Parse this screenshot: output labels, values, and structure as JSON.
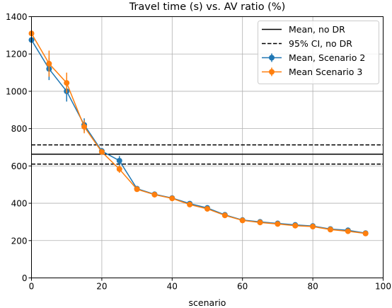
{
  "chart_data": {
    "type": "line",
    "title": "Travel time (s) vs. AV ratio (%)",
    "xlabel": "scenario",
    "ylabel": "",
    "xlim": [
      0,
      100
    ],
    "ylim": [
      0,
      1400
    ],
    "xticks": [
      0,
      20,
      40,
      60,
      80,
      100
    ],
    "yticks": [
      0,
      200,
      400,
      600,
      800,
      1000,
      1200,
      1400
    ],
    "grid": true,
    "legend_position": "top-right",
    "reference_lines": [
      {
        "name": "Mean, no DR",
        "y": 663,
        "style": "solid",
        "color": "#000000"
      },
      {
        "name": "95% CI, no DR",
        "y": 713,
        "style": "dashed",
        "color": "#000000"
      },
      {
        "name": "95% CI, no DR",
        "y": 610,
        "style": "dashed",
        "color": "#000000",
        "legend": false
      }
    ],
    "series": [
      {
        "name": "Mean, Scenario 2",
        "color": "#1f77b4",
        "x": [
          0,
          5,
          10,
          15,
          20,
          25,
          30,
          35,
          40,
          45,
          50,
          55,
          60,
          65,
          70,
          75,
          80,
          85,
          90,
          95
        ],
        "y": [
          1275,
          1120,
          1000,
          820,
          680,
          628,
          478,
          448,
          428,
          398,
          375,
          338,
          310,
          300,
          292,
          284,
          278,
          262,
          255,
          240
        ],
        "err": [
          15,
          60,
          55,
          35,
          15,
          25,
          10,
          8,
          8,
          8,
          8,
          8,
          8,
          6,
          6,
          6,
          6,
          6,
          6,
          6
        ]
      },
      {
        "name": "Mean Scenario 3",
        "color": "#ff7f0e",
        "x": [
          0,
          5,
          10,
          15,
          20,
          25,
          30,
          35,
          40,
          45,
          50,
          55,
          60,
          65,
          70,
          75,
          80,
          85,
          90,
          95
        ],
        "y": [
          1310,
          1148,
          1045,
          810,
          675,
          583,
          475,
          446,
          426,
          393,
          370,
          335,
          308,
          297,
          289,
          280,
          275,
          259,
          250,
          238
        ],
        "err": [
          15,
          70,
          55,
          35,
          15,
          20,
          10,
          8,
          8,
          8,
          8,
          8,
          8,
          6,
          6,
          6,
          6,
          6,
          6,
          6
        ]
      }
    ]
  }
}
